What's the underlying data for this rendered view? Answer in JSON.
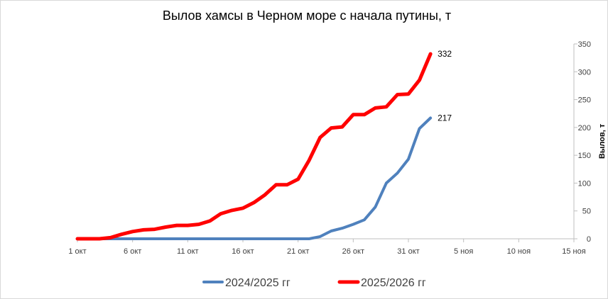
{
  "chart_data": {
    "type": "line",
    "title": "Вылов хамсы в Черном море с начала путины, т",
    "xlabel": "",
    "ylabel": "Вылов, т",
    "ylim": [
      0,
      350
    ],
    "yticks": [
      0,
      50,
      100,
      150,
      200,
      250,
      300,
      350
    ],
    "xlim_days": [
      1,
      46
    ],
    "xticks": [
      {
        "day": 1,
        "label": "1 окт"
      },
      {
        "day": 6,
        "label": "6 окт"
      },
      {
        "day": 11,
        "label": "11 окт"
      },
      {
        "day": 16,
        "label": "16 окт"
      },
      {
        "day": 21,
        "label": "21 окт"
      },
      {
        "day": 26,
        "label": "26 окт"
      },
      {
        "day": 31,
        "label": "31 окт"
      },
      {
        "day": 36,
        "label": "5 ноя"
      },
      {
        "day": 41,
        "label": "10 ноя"
      },
      {
        "day": 46,
        "label": "15 ноя"
      }
    ],
    "grid": false,
    "legend_position": "bottom",
    "series": [
      {
        "name": "2024/2025 гг",
        "color": "#4F81BD",
        "end_label": "217",
        "points": [
          [
            1,
            0
          ],
          [
            2,
            0
          ],
          [
            3,
            0
          ],
          [
            4,
            0
          ],
          [
            5,
            0
          ],
          [
            6,
            0
          ],
          [
            7,
            0
          ],
          [
            8,
            0
          ],
          [
            9,
            0
          ],
          [
            10,
            0
          ],
          [
            11,
            0
          ],
          [
            12,
            0
          ],
          [
            13,
            0
          ],
          [
            14,
            0
          ],
          [
            15,
            0
          ],
          [
            16,
            0
          ],
          [
            17,
            0
          ],
          [
            18,
            0
          ],
          [
            19,
            0
          ],
          [
            20,
            0
          ],
          [
            21,
            0
          ],
          [
            22,
            0
          ],
          [
            23,
            4
          ],
          [
            24,
            14
          ],
          [
            25,
            19
          ],
          [
            26,
            26
          ],
          [
            27,
            34
          ],
          [
            28,
            57
          ],
          [
            29,
            100
          ],
          [
            30,
            118
          ],
          [
            31,
            143
          ],
          [
            32,
            198
          ],
          [
            33,
            217
          ]
        ]
      },
      {
        "name": "2025/2026 гг",
        "color": "#FF0000",
        "end_label": "332",
        "points": [
          [
            1,
            0
          ],
          [
            2,
            0
          ],
          [
            3,
            0
          ],
          [
            4,
            2
          ],
          [
            5,
            8
          ],
          [
            6,
            13
          ],
          [
            7,
            16
          ],
          [
            8,
            17
          ],
          [
            9,
            21
          ],
          [
            10,
            24
          ],
          [
            11,
            24
          ],
          [
            12,
            26
          ],
          [
            13,
            32
          ],
          [
            14,
            45
          ],
          [
            15,
            51
          ],
          [
            16,
            55
          ],
          [
            17,
            65
          ],
          [
            18,
            79
          ],
          [
            19,
            97
          ],
          [
            20,
            97
          ],
          [
            21,
            107
          ],
          [
            22,
            141
          ],
          [
            23,
            182
          ],
          [
            24,
            199
          ],
          [
            25,
            201
          ],
          [
            26,
            223
          ],
          [
            27,
            223
          ],
          [
            28,
            235
          ],
          [
            29,
            237
          ],
          [
            30,
            259
          ],
          [
            31,
            260
          ],
          [
            32,
            285
          ],
          [
            33,
            332
          ]
        ]
      }
    ]
  }
}
